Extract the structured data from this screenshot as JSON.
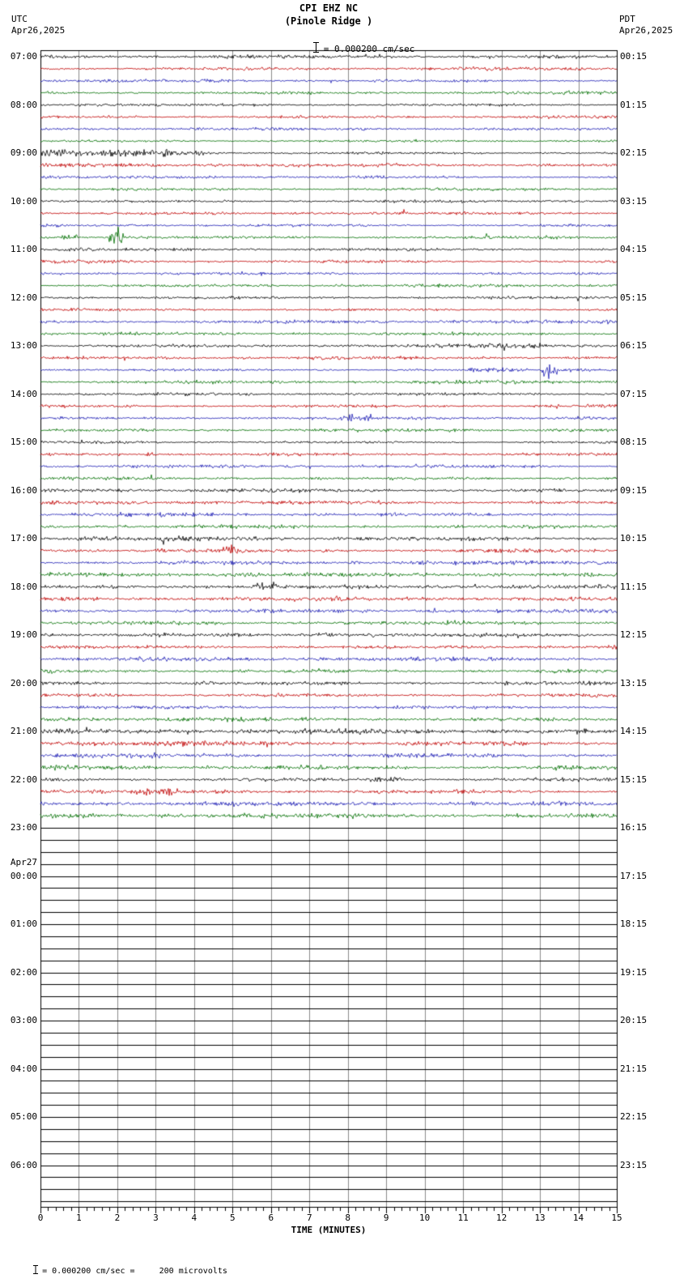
{
  "header": {
    "station_line1": "CPI EHZ NC",
    "station_line2": "(Pinole Ridge )",
    "left_tz": "UTC",
    "left_date": "Apr26,2025",
    "right_tz": "PDT",
    "right_date": "Apr26,2025",
    "scale_label": "= 0.000200 cm/sec"
  },
  "footer": {
    "axis_label": "TIME (MINUTES)",
    "scale_note": "= 0.000200 cm/sec =     200 microvolts"
  },
  "x_axis": {
    "ticks": [
      "0",
      "1",
      "2",
      "3",
      "4",
      "5",
      "6",
      "7",
      "8",
      "9",
      "10",
      "11",
      "12",
      "13",
      "14",
      "15"
    ]
  },
  "labels": {
    "left": [
      {
        "row": 0,
        "text": "07:00"
      },
      {
        "row": 4,
        "text": "08:00"
      },
      {
        "row": 8,
        "text": "09:00"
      },
      {
        "row": 12,
        "text": "10:00"
      },
      {
        "row": 16,
        "text": "11:00"
      },
      {
        "row": 20,
        "text": "12:00"
      },
      {
        "row": 24,
        "text": "13:00"
      },
      {
        "row": 28,
        "text": "14:00"
      },
      {
        "row": 32,
        "text": "15:00"
      },
      {
        "row": 36,
        "text": "16:00"
      },
      {
        "row": 40,
        "text": "17:00"
      },
      {
        "row": 44,
        "text": "18:00"
      },
      {
        "row": 48,
        "text": "19:00"
      },
      {
        "row": 52,
        "text": "20:00"
      },
      {
        "row": 56,
        "text": "21:00"
      },
      {
        "row": 60,
        "text": "22:00"
      },
      {
        "row": 64,
        "text": "23:00"
      },
      {
        "row": 66.9,
        "text": "Apr27"
      },
      {
        "row": 68,
        "text": "00:00"
      },
      {
        "row": 72,
        "text": "01:00"
      },
      {
        "row": 76,
        "text": "02:00"
      },
      {
        "row": 80,
        "text": "03:00"
      },
      {
        "row": 84,
        "text": "04:00"
      },
      {
        "row": 88,
        "text": "05:00"
      },
      {
        "row": 92,
        "text": "06:00"
      }
    ],
    "right": [
      {
        "row": 0,
        "text": "00:15"
      },
      {
        "row": 4,
        "text": "01:15"
      },
      {
        "row": 8,
        "text": "02:15"
      },
      {
        "row": 12,
        "text": "03:15"
      },
      {
        "row": 16,
        "text": "04:15"
      },
      {
        "row": 20,
        "text": "05:15"
      },
      {
        "row": 24,
        "text": "06:15"
      },
      {
        "row": 28,
        "text": "07:15"
      },
      {
        "row": 32,
        "text": "08:15"
      },
      {
        "row": 36,
        "text": "09:15"
      },
      {
        "row": 40,
        "text": "10:15"
      },
      {
        "row": 44,
        "text": "11:15"
      },
      {
        "row": 48,
        "text": "12:15"
      },
      {
        "row": 52,
        "text": "13:15"
      },
      {
        "row": 56,
        "text": "14:15"
      },
      {
        "row": 60,
        "text": "15:15"
      },
      {
        "row": 64,
        "text": "16:15"
      },
      {
        "row": 68,
        "text": "17:15"
      },
      {
        "row": 72,
        "text": "18:15"
      },
      {
        "row": 76,
        "text": "19:15"
      },
      {
        "row": 80,
        "text": "20:15"
      },
      {
        "row": 84,
        "text": "21:15"
      },
      {
        "row": 88,
        "text": "22:15"
      },
      {
        "row": 92,
        "text": "23:15"
      }
    ]
  },
  "colors": {
    "trace_cycle": [
      "#000000",
      "#c00000",
      "#1a1ab4",
      "#006e00"
    ],
    "grid": "#8a8a8a",
    "border": "#000000",
    "flat_trace": "#000000",
    "background": "#ffffff"
  },
  "chart_data": {
    "type": "line",
    "title": "CPI EHZ NC (Pinole Ridge ) 24-hour webicorder, 15-minute sweep lines",
    "xlabel": "TIME (MINUTES)",
    "ylabel": "",
    "x_range": [
      0,
      15
    ],
    "minutes_per_line": 15,
    "lines_per_hour": 4,
    "total_rows": 96,
    "active_rows": 64,
    "first_line_start": "07:00 UTC Apr26,2025",
    "data_flat_after": "23:00 UTC Apr26,2025 (16:15 PDT)",
    "trace_color_cycle": [
      "black",
      "red",
      "blue",
      "green"
    ],
    "amplitude_scale": "0.000200 cm/sec = 200 microvolts",
    "grid": "vertical lines every 1 minute",
    "events": [
      {
        "row": 8,
        "start_min": 0.0,
        "end_min": 4.3,
        "amp": 2.2
      },
      {
        "row": 8,
        "start_min": 3.2,
        "end_min": 3.5,
        "amp": 4.0
      },
      {
        "row": 15,
        "start_min": 0.55,
        "end_min": 0.95,
        "amp": 5.0
      },
      {
        "row": 15,
        "start_min": 1.75,
        "end_min": 2.15,
        "amp": 6.5
      },
      {
        "row": 24,
        "start_min": 11.0,
        "end_min": 13.2,
        "amp": 1.8
      },
      {
        "row": 26,
        "start_min": 11.0,
        "end_min": 15.0,
        "amp": 1.6
      },
      {
        "row": 26,
        "start_min": 13.05,
        "end_min": 13.45,
        "amp": 9.0
      },
      {
        "row": 30,
        "start_min": 8.0,
        "end_min": 8.6,
        "amp": 2.4
      },
      {
        "row": 33,
        "start_min": 2.7,
        "end_min": 3.1,
        "amp": 3.0
      },
      {
        "row": 41,
        "start_min": 4.75,
        "end_min": 5.15,
        "amp": 2.5
      },
      {
        "row": 44,
        "start_min": 5.6,
        "end_min": 6.15,
        "amp": 3.2
      },
      {
        "row": 48,
        "start_min": 7.1,
        "end_min": 8.7,
        "amp": 2.0
      },
      {
        "row": 52,
        "start_min": 4.0,
        "end_min": 4.5,
        "amp": 2.0
      },
      {
        "row": 60,
        "start_min": 8.4,
        "end_min": 9.4,
        "amp": 2.0
      },
      {
        "row": 61,
        "start_min": 2.4,
        "end_min": 3.6,
        "amp": 1.8
      }
    ]
  }
}
